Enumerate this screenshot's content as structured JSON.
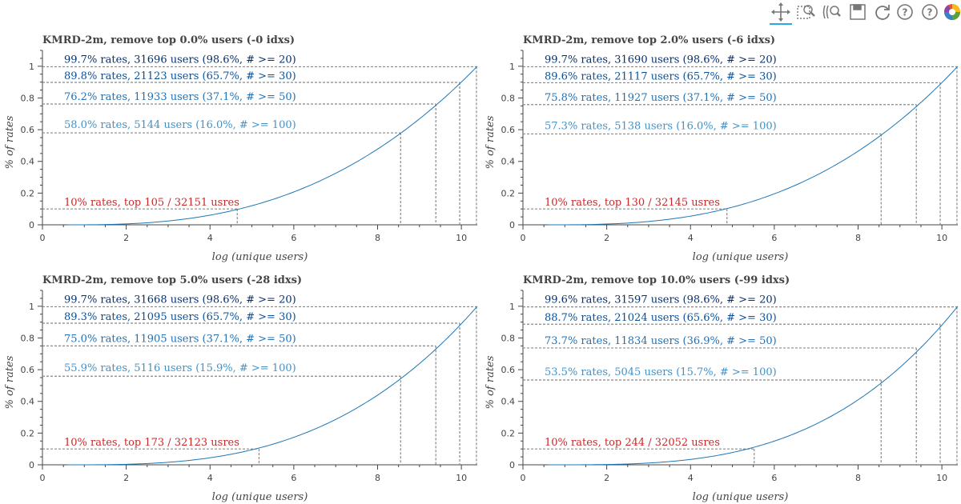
{
  "toolbar": {
    "tools": [
      {
        "name": "pan-tool-button",
        "icon": "pan-icon",
        "active": true
      },
      {
        "name": "box-zoom-tool-button",
        "icon": "box-zoom-icon",
        "active": false
      },
      {
        "name": "wheel-zoom-tool-button",
        "icon": "wheel-zoom-icon",
        "active": false
      },
      {
        "name": "save-tool-button",
        "icon": "save-icon",
        "active": false
      },
      {
        "name": "reset-tool-button",
        "icon": "reset-icon",
        "active": false
      },
      {
        "name": "hover-help-tool-button",
        "icon": "help-icon",
        "active": false
      },
      {
        "name": "help-tool-button",
        "icon": "help-icon",
        "active": false
      },
      {
        "name": "bokeh-logo",
        "icon": "bokeh-logo-icon",
        "active": false
      }
    ]
  },
  "colors": {
    "curve": "#1f77b4",
    "dashed": "#888888",
    "axis": "#444444",
    "annotations": [
      "#08306b",
      "#08519c",
      "#2171b5",
      "#4292c6"
    ],
    "top_annotation": "#c82828"
  },
  "chart_data": [
    {
      "type": "line",
      "title": "KMRD-2m, remove top 0.0% users (-0 idxs)",
      "xlabel": "log (unique users)",
      "ylabel": "% of rates",
      "xlim": [
        0,
        10.38
      ],
      "ylim": [
        0,
        1.1
      ],
      "xticks": [
        0,
        2,
        4,
        6,
        8,
        10
      ],
      "yticks": [
        0,
        0.2,
        0.4,
        0.6,
        0.8,
        1
      ],
      "grid": false,
      "curve_start_x": 0.6,
      "curve_exponent": 2.65,
      "thresholds": [
        {
          "label": "99.7% rates, 31696 users (98.6%, # >= 20)",
          "x": 10.36,
          "y": 0.997
        },
        {
          "label": "89.8% rates, 21123 users (65.7%, # >= 30)",
          "x": 9.96,
          "y": 0.898
        },
        {
          "label": "76.2% rates, 11933 users (37.1%, # >= 50)",
          "x": 9.39,
          "y": 0.762
        },
        {
          "label": "58.0% rates, 5144 users (16.0%, # >= 100)",
          "x": 8.55,
          "y": 0.58
        }
      ],
      "top": {
        "label": "10% rates, top 105 / 32151 usres",
        "x": 4.65,
        "y": 0.1
      }
    },
    {
      "type": "line",
      "title": "KMRD-2m, remove top 2.0% users (-6 idxs)",
      "xlabel": "log (unique users)",
      "ylabel": "% of rates",
      "xlim": [
        0,
        10.38
      ],
      "ylim": [
        0,
        1.1
      ],
      "xticks": [
        0,
        2,
        4,
        6,
        8,
        10
      ],
      "yticks": [
        0,
        0.2,
        0.4,
        0.6,
        0.8,
        1
      ],
      "grid": false,
      "curve_start_x": 0.6,
      "curve_exponent": 2.75,
      "thresholds": [
        {
          "label": "99.7% rates, 31690 users (98.6%, # >= 20)",
          "x": 10.36,
          "y": 0.997
        },
        {
          "label": "89.6% rates, 21117 users (65.7%, # >= 30)",
          "x": 9.96,
          "y": 0.896
        },
        {
          "label": "75.8% rates, 11927 users (37.1%, # >= 50)",
          "x": 9.39,
          "y": 0.758
        },
        {
          "label": "57.3% rates, 5138 users (16.0%, # >= 100)",
          "x": 8.55,
          "y": 0.573
        }
      ],
      "top": {
        "label": "10% rates, top 130 / 32145 usres",
        "x": 4.87,
        "y": 0.1
      }
    },
    {
      "type": "line",
      "title": "KMRD-2m, remove top 5.0% users (-28 idxs)",
      "xlabel": "log (unique users)",
      "ylabel": "% of rates",
      "xlim": [
        0,
        10.38
      ],
      "ylim": [
        0,
        1.1
      ],
      "xticks": [
        0,
        2,
        4,
        6,
        8,
        10
      ],
      "yticks": [
        0,
        0.2,
        0.4,
        0.6,
        0.8,
        1
      ],
      "grid": false,
      "curve_start_x": 0.6,
      "curve_exponent": 2.95,
      "thresholds": [
        {
          "label": "99.7% rates, 31668 users (98.6%, # >= 20)",
          "x": 10.36,
          "y": 0.997
        },
        {
          "label": "89.3% rates, 21095 users (65.7%, # >= 30)",
          "x": 9.96,
          "y": 0.893
        },
        {
          "label": "75.0% rates, 11905 users (37.1%, # >= 50)",
          "x": 9.39,
          "y": 0.75
        },
        {
          "label": "55.9% rates, 5116 users (15.9%, # >= 100)",
          "x": 8.55,
          "y": 0.559
        }
      ],
      "top": {
        "label": "10% rates, top 173 / 32123 usres",
        "x": 5.17,
        "y": 0.1
      }
    },
    {
      "type": "line",
      "title": "KMRD-2m, remove top 10.0% users (-99 idxs)",
      "xlabel": "log (unique users)",
      "ylabel": "% of rates",
      "xlim": [
        0,
        10.38
      ],
      "ylim": [
        0,
        1.1
      ],
      "xticks": [
        0,
        2,
        4,
        6,
        8,
        10
      ],
      "yticks": [
        0,
        0.2,
        0.4,
        0.6,
        0.8,
        1
      ],
      "grid": false,
      "curve_start_x": 0.6,
      "curve_exponent": 3.2,
      "thresholds": [
        {
          "label": "99.6% rates, 31597 users (98.6%, # >= 20)",
          "x": 10.36,
          "y": 0.996
        },
        {
          "label": "88.7% rates, 21024 users (65.6%, # >= 30)",
          "x": 9.96,
          "y": 0.887
        },
        {
          "label": "73.7% rates, 11834 users (36.9%, # >= 50)",
          "x": 9.39,
          "y": 0.737
        },
        {
          "label": "53.5% rates, 5045 users (15.7%, # >= 100)",
          "x": 8.55,
          "y": 0.535
        }
      ],
      "top": {
        "label": "10% rates, top 244 / 32052 usres",
        "x": 5.52,
        "y": 0.1
      }
    }
  ]
}
